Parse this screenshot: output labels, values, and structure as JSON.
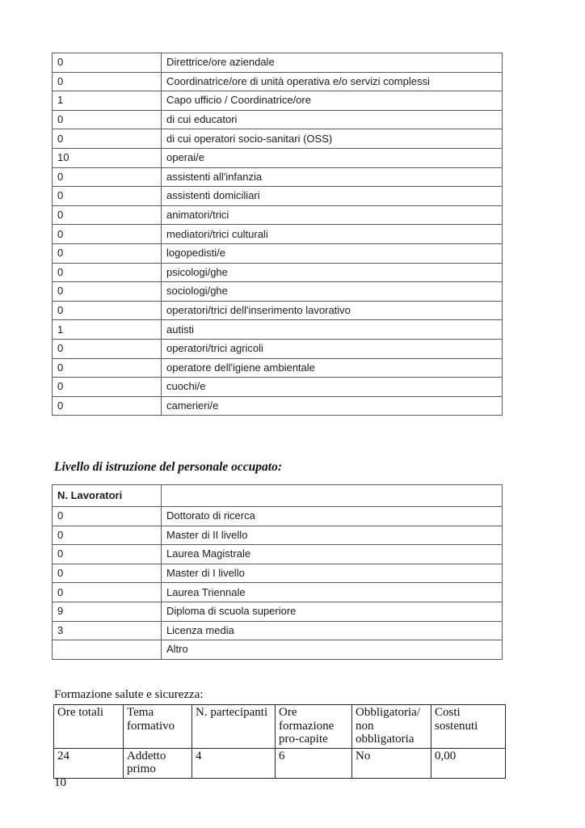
{
  "page": {
    "number": "10"
  },
  "staff_table": {
    "rows": [
      [
        "0",
        "Direttrice/ore aziendale"
      ],
      [
        "0",
        "Coordinatrice/ore di unità operativa e/o servizi complessi"
      ],
      [
        "1",
        "Capo ufficio / Coordinatrice/ore"
      ],
      [
        "0",
        "di cui educatori"
      ],
      [
        "0",
        "di cui operatori socio-sanitari (OSS)"
      ],
      [
        "10",
        "operai/e"
      ],
      [
        "0",
        "assistenti all'infanzia"
      ],
      [
        "0",
        "assistenti domiciliari"
      ],
      [
        "0",
        "animatori/trici"
      ],
      [
        "0",
        "mediatori/trici culturali"
      ],
      [
        "0",
        "logopedisti/e"
      ],
      [
        "0",
        "psicologi/ghe"
      ],
      [
        "0",
        "sociologi/ghe"
      ],
      [
        "0",
        "operatori/trici dell'inserimento lavorativo"
      ],
      [
        "1",
        "autisti"
      ],
      [
        "0",
        "operatori/trici agricoli"
      ],
      [
        "0",
        "operatore dell'igiene ambientale"
      ],
      [
        "0",
        "cuochi/e"
      ],
      [
        "0",
        "camerieri/e"
      ]
    ]
  },
  "education": {
    "heading": "Livello di istruzione del personale occupato:",
    "headers": [
      "N. Lavoratori",
      ""
    ],
    "rows": [
      [
        "0",
        "Dottorato di ricerca"
      ],
      [
        "0",
        "Master di II livello"
      ],
      [
        "0",
        "Laurea Magistrale"
      ],
      [
        "0",
        "Master di I livello"
      ],
      [
        "0",
        "Laurea Triennale"
      ],
      [
        "9",
        "Diploma di scuola superiore"
      ],
      [
        "3",
        "Licenza media"
      ],
      [
        "",
        "Altro"
      ]
    ]
  },
  "training": {
    "heading": "Formazione salute e sicurezza:",
    "headers": [
      "Ore totali",
      "Tema formativo",
      "N. partecipanti",
      "Ore formazione pro-capite",
      "Obbligatoria/ non obbligatoria",
      "Costi sostenuti"
    ],
    "rows": [
      [
        "24",
        "Addetto primo",
        "4",
        "6",
        "No",
        "0,00"
      ]
    ]
  },
  "colors": {
    "table_border_gray": "#5a5a5a",
    "table_border_dark": "#262626",
    "text": "#1c1c1c"
  }
}
